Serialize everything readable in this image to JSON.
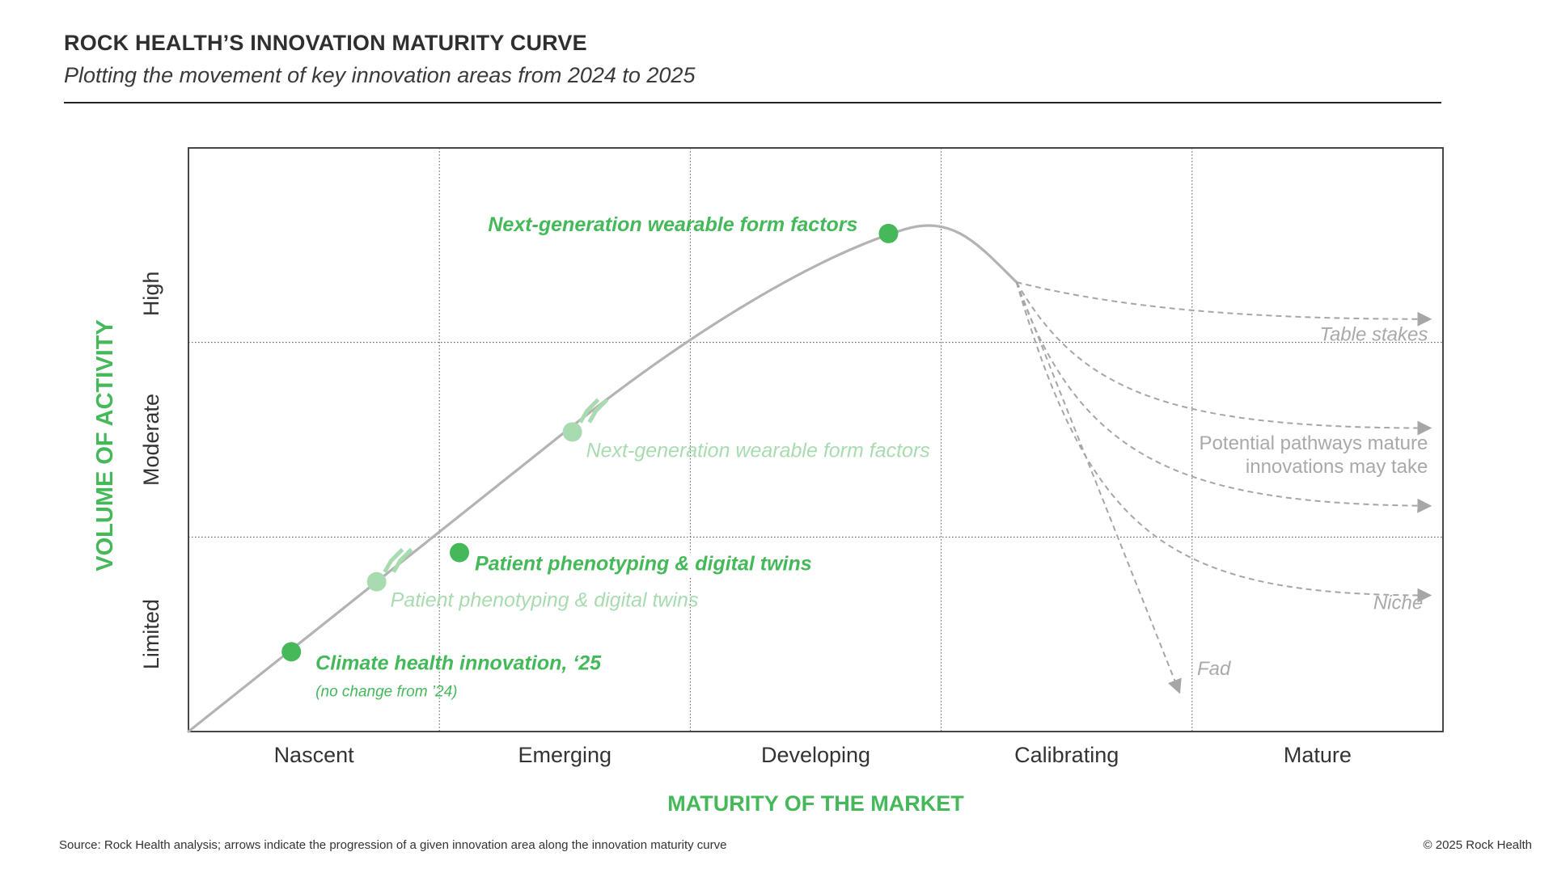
{
  "header": {
    "title": "ROCK HEALTH’S INNOVATION MATURITY CURVE",
    "subtitle": "Plotting the movement of key innovation areas from 2024 to 2025"
  },
  "footer": {
    "source": "Source: Rock Health analysis; arrows indicate the progression of a given innovation area along the innovation maturity curve",
    "copyright": "© 2025 Rock Health"
  },
  "colors": {
    "accent_green": "#45b95a",
    "faded_green": "#a8dcb0",
    "curve_gray": "#b3b3b3",
    "pathway_gray": "#a6a6a6",
    "text_dark": "#333333"
  },
  "chart_data": {
    "type": "line",
    "x_axis": {
      "label": "MATURITY OF THE MARKET",
      "categories": [
        "Nascent",
        "Emerging",
        "Developing",
        "Calibrating",
        "Mature"
      ]
    },
    "y_axis": {
      "label": "VOLUME OF ACTIVITY",
      "categories": [
        "Limited",
        "Moderate",
        "High"
      ]
    },
    "grid": true,
    "points_2025": [
      {
        "label": "Next-generation wearable form factors",
        "note": "",
        "x": 2.79,
        "y": 2.56
      },
      {
        "label": "Patient phenotyping & digital twins",
        "note": "",
        "x": 1.08,
        "y": 0.92
      },
      {
        "label": "Climate health innovation, ‘25",
        "note": "(no change from ’24)",
        "x": 0.41,
        "y": 0.41
      }
    ],
    "points_2024": [
      {
        "label": "Next-generation wearable form factors",
        "x": 1.53,
        "y": 1.54
      },
      {
        "label": "Patient phenotyping & digital twins",
        "x": 0.75,
        "y": 0.77
      }
    ],
    "pathways": [
      "Table stakes",
      "Potential pathways mature\ninnovations may take",
      "Niche",
      "Fad"
    ]
  }
}
